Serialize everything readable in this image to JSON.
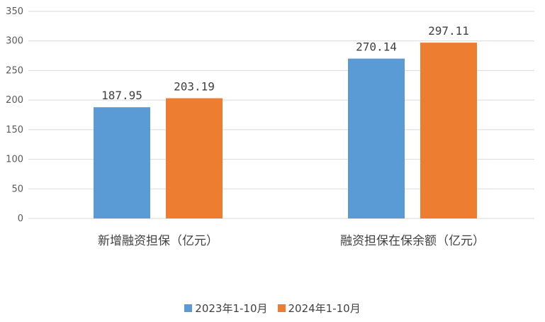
{
  "chart_data": {
    "type": "bar",
    "categories": [
      "新增融资担保（亿元）",
      "融资担保在保余额（亿元）"
    ],
    "series": [
      {
        "name": "2023年1-10月",
        "values": [
          187.95,
          270.14
        ],
        "color": "#5B9BD5"
      },
      {
        "name": "2024年1-10月",
        "values": [
          203.19,
          297.11
        ],
        "color": "#ED7D31"
      }
    ],
    "value_labels": [
      [
        "187.95",
        "270.14"
      ],
      [
        "203.19",
        "297.11"
      ]
    ],
    "yticks": [
      "0",
      "50",
      "100",
      "150",
      "200",
      "250",
      "300",
      "350"
    ],
    "ylim": [
      0,
      350
    ],
    "grid": true,
    "legend_position": "bottom-center",
    "title": "",
    "xlabel": "",
    "ylabel": ""
  }
}
